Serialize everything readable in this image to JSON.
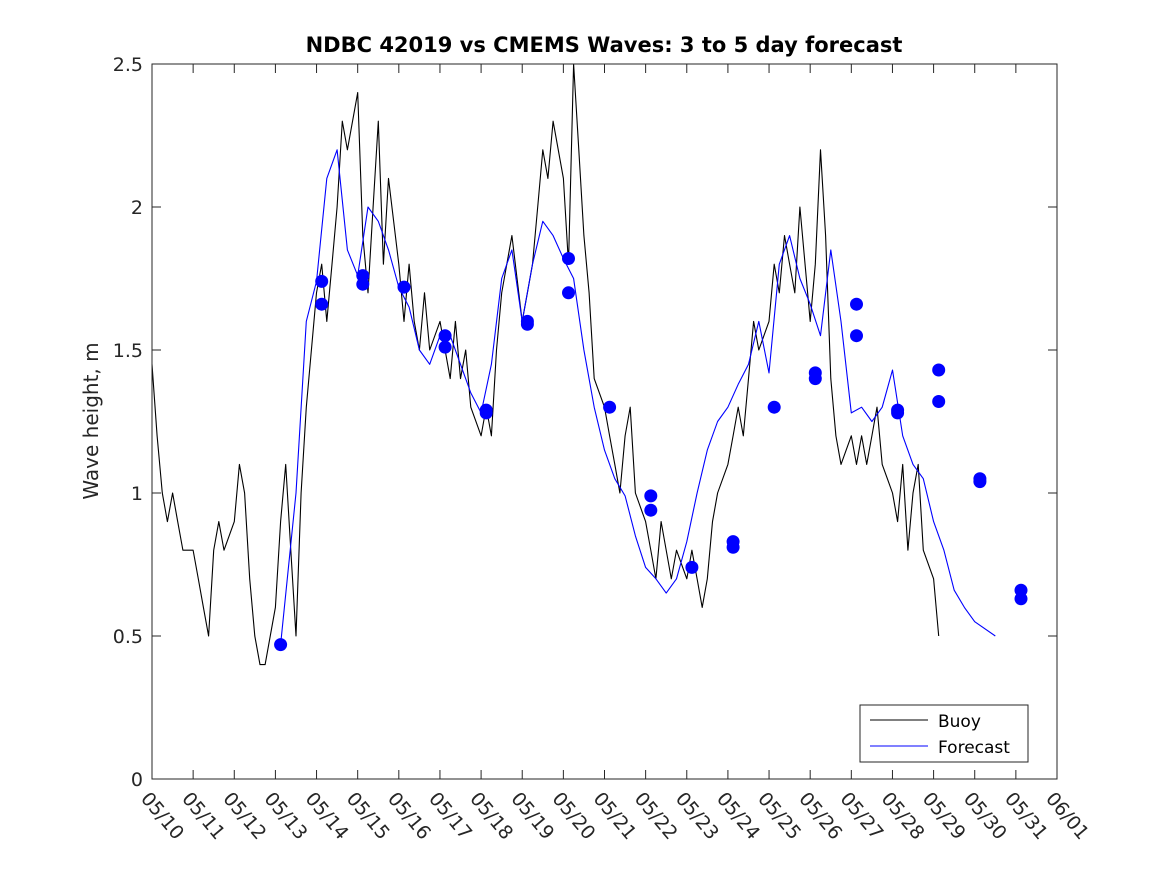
{
  "chart_data": {
    "type": "line",
    "title": "NDBC 42019 vs CMEMS Waves: 3 to 5 day forecast",
    "xlabel": "",
    "ylabel": "Wave height, m",
    "xlim": [
      "2023-05-10",
      "2023-06-01"
    ],
    "ylim": [
      0,
      2.5
    ],
    "x_tick_labels": [
      "05/10",
      "05/11",
      "05/12",
      "05/13",
      "05/14",
      "05/15",
      "05/16",
      "05/17",
      "05/18",
      "05/19",
      "05/20",
      "05/21",
      "05/22",
      "05/23",
      "05/24",
      "05/25",
      "05/26",
      "05/27",
      "05/28",
      "05/29",
      "05/30",
      "05/31",
      "06/01"
    ],
    "y_ticks": [
      0,
      0.5,
      1,
      1.5,
      2,
      2.5
    ],
    "y_tick_labels": [
      "0",
      "0.5",
      "1",
      "1.5",
      "2",
      "2.5"
    ],
    "grid": false,
    "legend_position": "bottom-right",
    "legend": [
      {
        "label": "Buoy",
        "color": "#000000"
      },
      {
        "label": "Forecast",
        "color": "#0000ff"
      }
    ],
    "series": [
      {
        "name": "Buoy",
        "color": "#000000",
        "points": [
          [
            "05/10 00:00",
            1.45
          ],
          [
            "05/10 03:00",
            1.2
          ],
          [
            "05/10 06:00",
            1.0
          ],
          [
            "05/10 09:00",
            0.9
          ],
          [
            "05/10 12:00",
            1.0
          ],
          [
            "05/10 15:00",
            0.9
          ],
          [
            "05/10 18:00",
            0.8
          ],
          [
            "05/11 00:00",
            0.8
          ],
          [
            "05/11 03:00",
            0.7
          ],
          [
            "05/11 06:00",
            0.6
          ],
          [
            "05/11 09:00",
            0.5
          ],
          [
            "05/11 12:00",
            0.8
          ],
          [
            "05/11 15:00",
            0.9
          ],
          [
            "05/11 18:00",
            0.8
          ],
          [
            "05/12 00:00",
            0.9
          ],
          [
            "05/12 03:00",
            1.1
          ],
          [
            "05/12 06:00",
            1.0
          ],
          [
            "05/12 09:00",
            0.7
          ],
          [
            "05/12 12:00",
            0.5
          ],
          [
            "05/12 15:00",
            0.4
          ],
          [
            "05/12 18:00",
            0.4
          ],
          [
            "05/13 00:00",
            0.6
          ],
          [
            "05/13 03:00",
            0.9
          ],
          [
            "05/13 06:00",
            1.1
          ],
          [
            "05/13 09:00",
            0.8
          ],
          [
            "05/13 12:00",
            0.5
          ],
          [
            "05/13 15:00",
            1.0
          ],
          [
            "05/13 18:00",
            1.3
          ],
          [
            "05/14 00:00",
            1.7
          ],
          [
            "05/14 03:00",
            1.8
          ],
          [
            "05/14 06:00",
            1.6
          ],
          [
            "05/14 09:00",
            1.8
          ],
          [
            "05/14 12:00",
            2.0
          ],
          [
            "05/14 15:00",
            2.3
          ],
          [
            "05/14 18:00",
            2.2
          ],
          [
            "05/15 00:00",
            2.4
          ],
          [
            "05/15 03:00",
            1.9
          ],
          [
            "05/15 06:00",
            1.7
          ],
          [
            "05/15 09:00",
            2.0
          ],
          [
            "05/15 12:00",
            2.3
          ],
          [
            "05/15 15:00",
            1.8
          ],
          [
            "05/15 18:00",
            2.1
          ],
          [
            "05/16 00:00",
            1.8
          ],
          [
            "05/16 03:00",
            1.6
          ],
          [
            "05/16 06:00",
            1.8
          ],
          [
            "05/16 09:00",
            1.6
          ],
          [
            "05/16 12:00",
            1.5
          ],
          [
            "05/16 15:00",
            1.7
          ],
          [
            "05/16 18:00",
            1.5
          ],
          [
            "05/17 00:00",
            1.6
          ],
          [
            "05/17 03:00",
            1.5
          ],
          [
            "05/17 06:00",
            1.4
          ],
          [
            "05/17 09:00",
            1.6
          ],
          [
            "05/17 12:00",
            1.4
          ],
          [
            "05/17 15:00",
            1.5
          ],
          [
            "05/17 18:00",
            1.3
          ],
          [
            "05/18 00:00",
            1.2
          ],
          [
            "05/18 03:00",
            1.3
          ],
          [
            "05/18 06:00",
            1.2
          ],
          [
            "05/18 09:00",
            1.5
          ],
          [
            "05/18 12:00",
            1.7
          ],
          [
            "05/18 15:00",
            1.8
          ],
          [
            "05/18 18:00",
            1.9
          ],
          [
            "05/19 00:00",
            1.6
          ],
          [
            "05/19 03:00",
            1.7
          ],
          [
            "05/19 06:00",
            1.8
          ],
          [
            "05/19 09:00",
            2.0
          ],
          [
            "05/19 12:00",
            2.2
          ],
          [
            "05/19 15:00",
            2.1
          ],
          [
            "05/19 18:00",
            2.3
          ],
          [
            "05/20 00:00",
            2.1
          ],
          [
            "05/20 03:00",
            1.8
          ],
          [
            "05/20 06:00",
            2.5
          ],
          [
            "05/20 09:00",
            2.2
          ],
          [
            "05/20 12:00",
            1.9
          ],
          [
            "05/20 15:00",
            1.7
          ],
          [
            "05/20 18:00",
            1.4
          ],
          [
            "05/21 00:00",
            1.3
          ],
          [
            "05/21 03:00",
            1.2
          ],
          [
            "05/21 06:00",
            1.1
          ],
          [
            "05/21 09:00",
            1.0
          ],
          [
            "05/21 12:00",
            1.2
          ],
          [
            "05/21 15:00",
            1.3
          ],
          [
            "05/21 18:00",
            1.0
          ],
          [
            "05/22 00:00",
            0.9
          ],
          [
            "05/22 03:00",
            0.8
          ],
          [
            "05/22 06:00",
            0.7
          ],
          [
            "05/22 09:00",
            0.9
          ],
          [
            "05/22 12:00",
            0.8
          ],
          [
            "05/22 15:00",
            0.7
          ],
          [
            "05/22 18:00",
            0.8
          ],
          [
            "05/23 00:00",
            0.7
          ],
          [
            "05/23 03:00",
            0.8
          ],
          [
            "05/23 06:00",
            0.7
          ],
          [
            "05/23 09:00",
            0.6
          ],
          [
            "05/23 12:00",
            0.7
          ],
          [
            "05/23 15:00",
            0.9
          ],
          [
            "05/23 18:00",
            1.0
          ],
          [
            "05/24 00:00",
            1.1
          ],
          [
            "05/24 03:00",
            1.2
          ],
          [
            "05/24 06:00",
            1.3
          ],
          [
            "05/24 09:00",
            1.2
          ],
          [
            "05/24 12:00",
            1.4
          ],
          [
            "05/24 15:00",
            1.6
          ],
          [
            "05/24 18:00",
            1.5
          ],
          [
            "05/25 00:00",
            1.6
          ],
          [
            "05/25 03:00",
            1.8
          ],
          [
            "05/25 06:00",
            1.7
          ],
          [
            "05/25 09:00",
            1.9
          ],
          [
            "05/25 12:00",
            1.8
          ],
          [
            "05/25 15:00",
            1.7
          ],
          [
            "05/25 18:00",
            2.0
          ],
          [
            "05/26 00:00",
            1.6
          ],
          [
            "05/26 03:00",
            1.8
          ],
          [
            "05/26 06:00",
            2.2
          ],
          [
            "05/26 09:00",
            1.9
          ],
          [
            "05/26 12:00",
            1.4
          ],
          [
            "05/26 15:00",
            1.2
          ],
          [
            "05/26 18:00",
            1.1
          ],
          [
            "05/27 00:00",
            1.2
          ],
          [
            "05/27 03:00",
            1.1
          ],
          [
            "05/27 06:00",
            1.2
          ],
          [
            "05/27 09:00",
            1.1
          ],
          [
            "05/27 12:00",
            1.2
          ],
          [
            "05/27 15:00",
            1.3
          ],
          [
            "05/27 18:00",
            1.1
          ],
          [
            "05/28 00:00",
            1.0
          ],
          [
            "05/28 03:00",
            0.9
          ],
          [
            "05/28 06:00",
            1.1
          ],
          [
            "05/28 09:00",
            0.8
          ],
          [
            "05/28 12:00",
            1.0
          ],
          [
            "05/28 15:00",
            1.1
          ],
          [
            "05/28 18:00",
            0.8
          ],
          [
            "05/29 00:00",
            0.7
          ],
          [
            "05/29 03:00",
            0.5
          ]
        ]
      },
      {
        "name": "Forecast",
        "color": "#0000ff",
        "points": [
          [
            "05/13 03:00",
            0.47
          ],
          [
            "05/13 12:00",
            1.0
          ],
          [
            "05/13 18:00",
            1.6
          ],
          [
            "05/14 00:00",
            1.74
          ],
          [
            "05/14 06:00",
            2.1
          ],
          [
            "05/14 12:00",
            2.2
          ],
          [
            "05/14 18:00",
            1.85
          ],
          [
            "05/15 00:00",
            1.76
          ],
          [
            "05/15 06:00",
            2.0
          ],
          [
            "05/15 12:00",
            1.95
          ],
          [
            "05/15 18:00",
            1.85
          ],
          [
            "05/16 00:00",
            1.72
          ],
          [
            "05/16 06:00",
            1.65
          ],
          [
            "05/16 12:00",
            1.5
          ],
          [
            "05/16 18:00",
            1.45
          ],
          [
            "05/17 00:00",
            1.55
          ],
          [
            "05/17 06:00",
            1.55
          ],
          [
            "05/17 12:00",
            1.45
          ],
          [
            "05/17 18:00",
            1.35
          ],
          [
            "05/18 00:00",
            1.28
          ],
          [
            "05/18 06:00",
            1.45
          ],
          [
            "05/18 12:00",
            1.75
          ],
          [
            "05/18 18:00",
            1.85
          ],
          [
            "05/19 00:00",
            1.6
          ],
          [
            "05/19 06:00",
            1.8
          ],
          [
            "05/19 12:00",
            1.95
          ],
          [
            "05/19 18:00",
            1.9
          ],
          [
            "05/20 00:00",
            1.82
          ],
          [
            "05/20 06:00",
            1.75
          ],
          [
            "05/20 12:00",
            1.5
          ],
          [
            "05/20 18:00",
            1.3
          ],
          [
            "05/21 00:00",
            1.15
          ],
          [
            "05/21 06:00",
            1.05
          ],
          [
            "05/21 12:00",
            0.99
          ],
          [
            "05/21 18:00",
            0.85
          ],
          [
            "05/22 00:00",
            0.74
          ],
          [
            "05/22 06:00",
            0.7
          ],
          [
            "05/22 12:00",
            0.65
          ],
          [
            "05/22 18:00",
            0.7
          ],
          [
            "05/23 00:00",
            0.83
          ],
          [
            "05/23 06:00",
            1.0
          ],
          [
            "05/23 12:00",
            1.15
          ],
          [
            "05/23 18:00",
            1.25
          ],
          [
            "05/24 00:00",
            1.3
          ],
          [
            "05/24 06:00",
            1.38
          ],
          [
            "05/24 12:00",
            1.45
          ],
          [
            "05/24 18:00",
            1.6
          ],
          [
            "05/25 00:00",
            1.42
          ],
          [
            "05/25 06:00",
            1.8
          ],
          [
            "05/25 12:00",
            1.9
          ],
          [
            "05/25 18:00",
            1.75
          ],
          [
            "05/26 00:00",
            1.66
          ],
          [
            "05/26 06:00",
            1.55
          ],
          [
            "05/26 12:00",
            1.85
          ],
          [
            "05/26 18:00",
            1.6
          ],
          [
            "05/27 00:00",
            1.28
          ],
          [
            "05/27 06:00",
            1.3
          ],
          [
            "05/27 12:00",
            1.25
          ],
          [
            "05/27 18:00",
            1.3
          ],
          [
            "05/28 00:00",
            1.43
          ],
          [
            "05/28 06:00",
            1.2
          ],
          [
            "05/28 12:00",
            1.1
          ],
          [
            "05/28 18:00",
            1.05
          ],
          [
            "05/29 00:00",
            0.9
          ],
          [
            "05/29 06:00",
            0.8
          ],
          [
            "05/29 12:00",
            0.66
          ],
          [
            "05/29 18:00",
            0.6
          ],
          [
            "05/30 00:00",
            0.55
          ],
          [
            "05/30 12:00",
            0.5
          ]
        ]
      }
    ],
    "markers": {
      "name": "Forecast",
      "color": "#0000ff",
      "points": [
        [
          "05/13 03:00",
          0.47
        ],
        [
          "05/14 03:00",
          1.74
        ],
        [
          "05/14 03:00",
          1.66
        ],
        [
          "05/15 03:00",
          1.76
        ],
        [
          "05/15 03:00",
          1.73
        ],
        [
          "05/16 03:00",
          1.72
        ],
        [
          "05/17 03:00",
          1.55
        ],
        [
          "05/17 03:00",
          1.51
        ],
        [
          "05/18 03:00",
          1.29
        ],
        [
          "05/18 03:00",
          1.28
        ],
        [
          "05/19 03:00",
          1.6
        ],
        [
          "05/19 03:00",
          1.59
        ],
        [
          "05/20 03:00",
          1.82
        ],
        [
          "05/20 03:00",
          1.7
        ],
        [
          "05/21 03:00",
          1.3
        ],
        [
          "05/22 03:00",
          0.99
        ],
        [
          "05/22 03:00",
          0.94
        ],
        [
          "05/23 03:00",
          0.74
        ],
        [
          "05/24 03:00",
          0.83
        ],
        [
          "05/24 03:00",
          0.81
        ],
        [
          "05/25 03:00",
          1.3
        ],
        [
          "05/26 03:00",
          1.42
        ],
        [
          "05/26 03:00",
          1.4
        ],
        [
          "05/27 03:00",
          1.66
        ],
        [
          "05/27 03:00",
          1.55
        ],
        [
          "05/28 03:00",
          1.29
        ],
        [
          "05/28 03:00",
          1.28
        ],
        [
          "05/29 03:00",
          1.43
        ],
        [
          "05/29 03:00",
          1.32
        ],
        [
          "05/30 03:00",
          1.05
        ],
        [
          "05/30 03:00",
          1.04
        ],
        [
          "05/31 03:00",
          0.66
        ],
        [
          "05/31 03:00",
          0.63
        ]
      ]
    }
  }
}
